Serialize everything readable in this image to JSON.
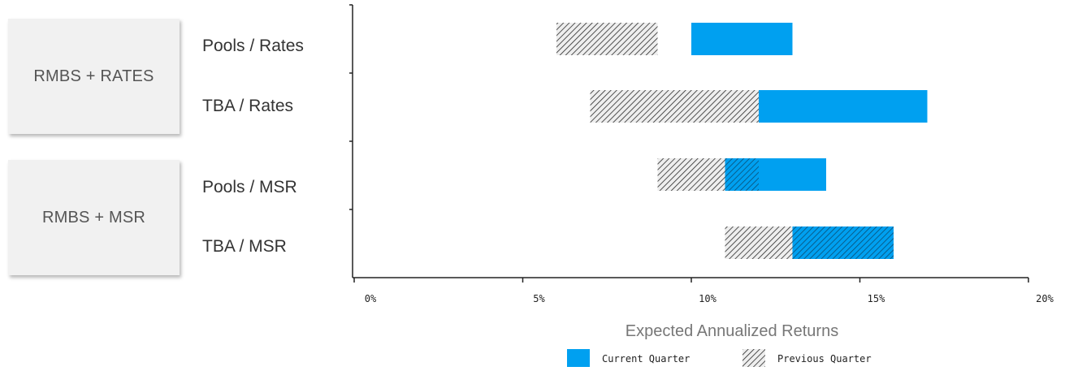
{
  "chart_data": {
    "type": "bar",
    "subtype": "floating-range-bar",
    "groups": [
      {
        "label": "RMBS + RATES",
        "rows": [
          "Pools / Rates",
          "TBA / Rates"
        ]
      },
      {
        "label": "RMBS + MSR",
        "rows": [
          "Pools / MSR",
          "TBA / MSR"
        ]
      }
    ],
    "categories": [
      "Pools / Rates",
      "TBA / Rates",
      "Pools / MSR",
      "TBA / MSR"
    ],
    "series": [
      {
        "name": "Current Quarter",
        "ranges": [
          [
            10,
            13
          ],
          [
            12,
            17
          ],
          [
            11,
            14
          ],
          [
            13,
            16
          ]
        ]
      },
      {
        "name": "Previous Quarter",
        "ranges": [
          [
            6,
            9
          ],
          [
            7,
            12
          ],
          [
            9,
            12
          ],
          [
            11,
            16
          ]
        ]
      }
    ],
    "xlabel": "Expected Annualized Returns",
    "xlim": [
      0,
      20
    ],
    "xticks": [
      "0%",
      "5%",
      "10%",
      "15%",
      "20%"
    ],
    "legend_position": "bottom",
    "colors": {
      "current": "#00a0f0",
      "previous_hatch": "#2a2a2a",
      "overlap": "#0078b4"
    }
  }
}
